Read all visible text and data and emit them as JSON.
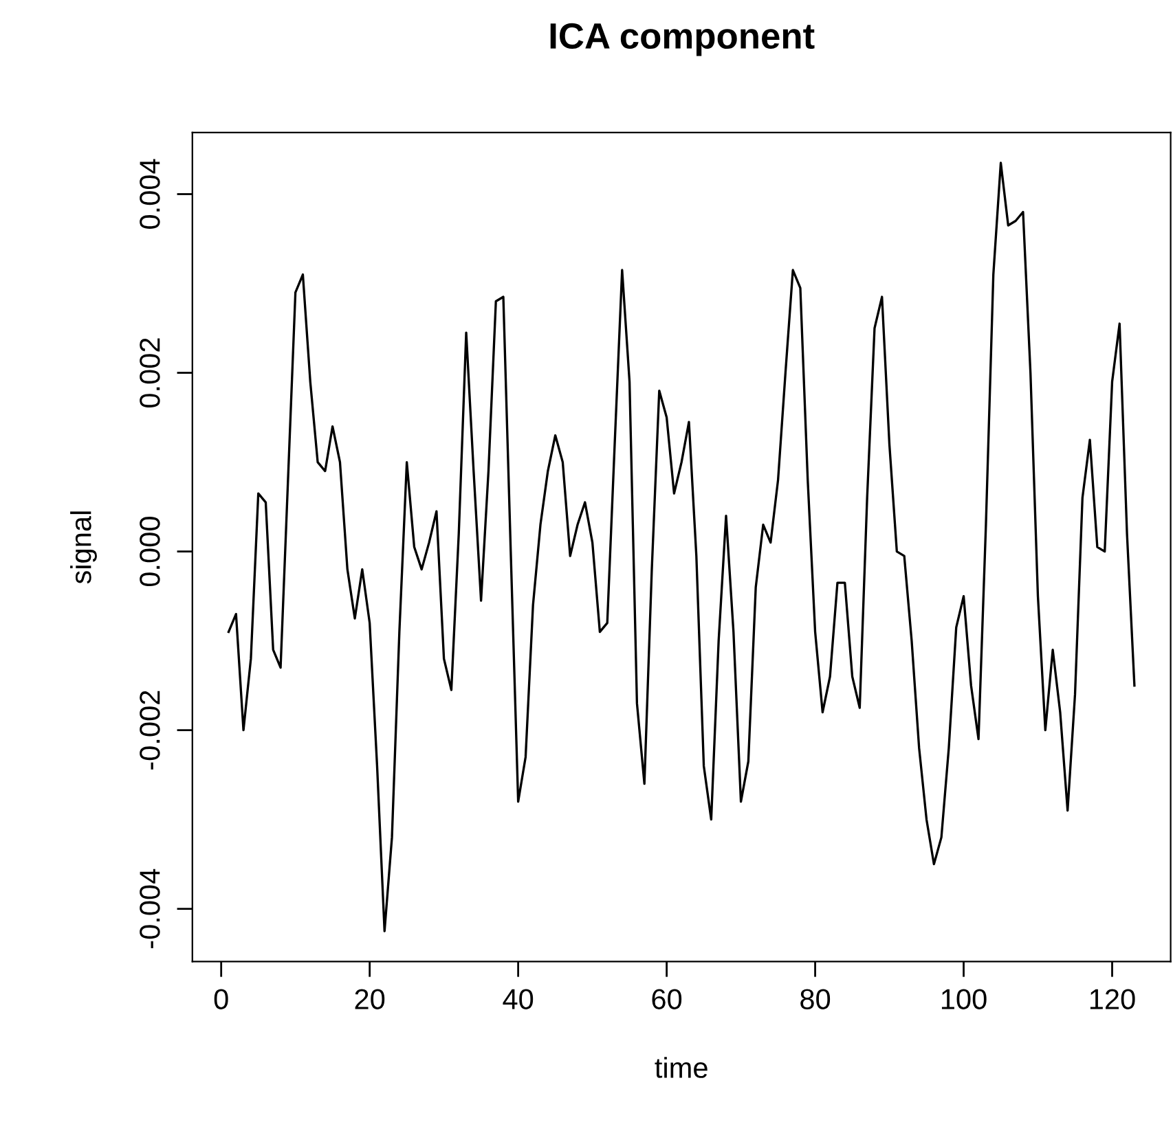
{
  "chart_data": {
    "type": "line",
    "title": "ICA component",
    "xlabel": "time",
    "ylabel": "signal",
    "x": [
      1,
      2,
      3,
      4,
      5,
      6,
      7,
      8,
      9,
      10,
      11,
      12,
      13,
      14,
      15,
      16,
      17,
      18,
      19,
      20,
      21,
      22,
      23,
      24,
      25,
      26,
      27,
      28,
      29,
      30,
      31,
      32,
      33,
      34,
      35,
      36,
      37,
      38,
      39,
      40,
      41,
      42,
      43,
      44,
      45,
      46,
      47,
      48,
      49,
      50,
      51,
      52,
      53,
      54,
      55,
      56,
      57,
      58,
      59,
      60,
      61,
      62,
      63,
      64,
      65,
      66,
      67,
      68,
      69,
      70,
      71,
      72,
      73,
      74,
      75,
      76,
      77,
      78,
      79,
      80,
      81,
      82,
      83,
      84,
      85,
      86,
      87,
      88,
      89,
      90,
      91,
      92,
      93,
      94,
      95,
      96,
      97,
      98,
      99,
      100,
      101,
      102,
      103,
      104,
      105,
      106,
      107,
      108,
      109,
      110,
      111,
      112,
      113,
      114,
      115,
      116,
      117,
      118,
      119,
      120,
      121,
      122,
      123
    ],
    "series": [
      {
        "color": "#000000",
        "values": [
          -0.0009,
          -0.0007,
          -0.002,
          -0.0012,
          0.00065,
          0.00055,
          -0.0011,
          -0.0013,
          0.0008,
          0.0029,
          0.0031,
          0.0019,
          0.001,
          0.0009,
          0.0014,
          0.001,
          -0.0002,
          -0.00075,
          -0.0002,
          -0.0008,
          -0.0024,
          -0.00425,
          -0.0032,
          -0.0009,
          0.001,
          5e-05,
          -0.0002,
          0.0001,
          0.00045,
          -0.0012,
          -0.00155,
          0.0002,
          0.00245,
          0.0009,
          -0.00055,
          0.0009,
          0.0028,
          0.00285,
          0.0,
          -0.0028,
          -0.0023,
          -0.0006,
          0.0003,
          0.0009,
          0.0013,
          0.001,
          -5e-05,
          0.0003,
          0.00055,
          0.0001,
          -0.0009,
          -0.0008,
          0.0012,
          0.00315,
          0.0019,
          -0.0017,
          -0.0026,
          -0.0002,
          0.0018,
          0.0015,
          0.00065,
          0.001,
          0.00145,
          -5e-05,
          -0.0024,
          -0.003,
          -0.001,
          0.0004,
          -0.0009,
          -0.0028,
          -0.00235,
          -0.0004,
          0.0003,
          0.0001,
          0.0008,
          0.002,
          0.00315,
          0.00295,
          0.0008,
          -0.0009,
          -0.0018,
          -0.0014,
          -0.00035,
          -0.00035,
          -0.0014,
          -0.00175,
          0.0006,
          0.0025,
          0.00285,
          0.0012,
          0.0,
          -5e-05,
          -0.001,
          -0.0022,
          -0.003,
          -0.0035,
          -0.0032,
          -0.0022,
          -0.00085,
          -0.0005,
          -0.0015,
          -0.0021,
          0.0003,
          0.0031,
          0.00435,
          0.00365,
          0.0037,
          0.0038,
          0.002,
          -0.0005,
          -0.002,
          -0.0011,
          -0.0018,
          -0.0029,
          -0.0016,
          0.0006,
          0.00125,
          5e-05,
          0.0,
          0.0019,
          0.00255,
          0.0002,
          -0.0015
        ]
      }
    ],
    "xlim": [
      -3.88,
      127.88
    ],
    "xticks": [
      0,
      20,
      40,
      60,
      80,
      100,
      120
    ],
    "ylim": [
      -0.00459,
      0.00469
    ],
    "yticks": [
      {
        "value": -0.004,
        "label": "-0.004"
      },
      {
        "value": -0.002,
        "label": "-0.002"
      },
      {
        "value": 0.0,
        "label": "0.000"
      },
      {
        "value": 0.002,
        "label": "0.002"
      },
      {
        "value": 0.004,
        "label": "0.004"
      }
    ],
    "line_style": "solid",
    "marker": "none",
    "grid": false,
    "legend": false
  }
}
